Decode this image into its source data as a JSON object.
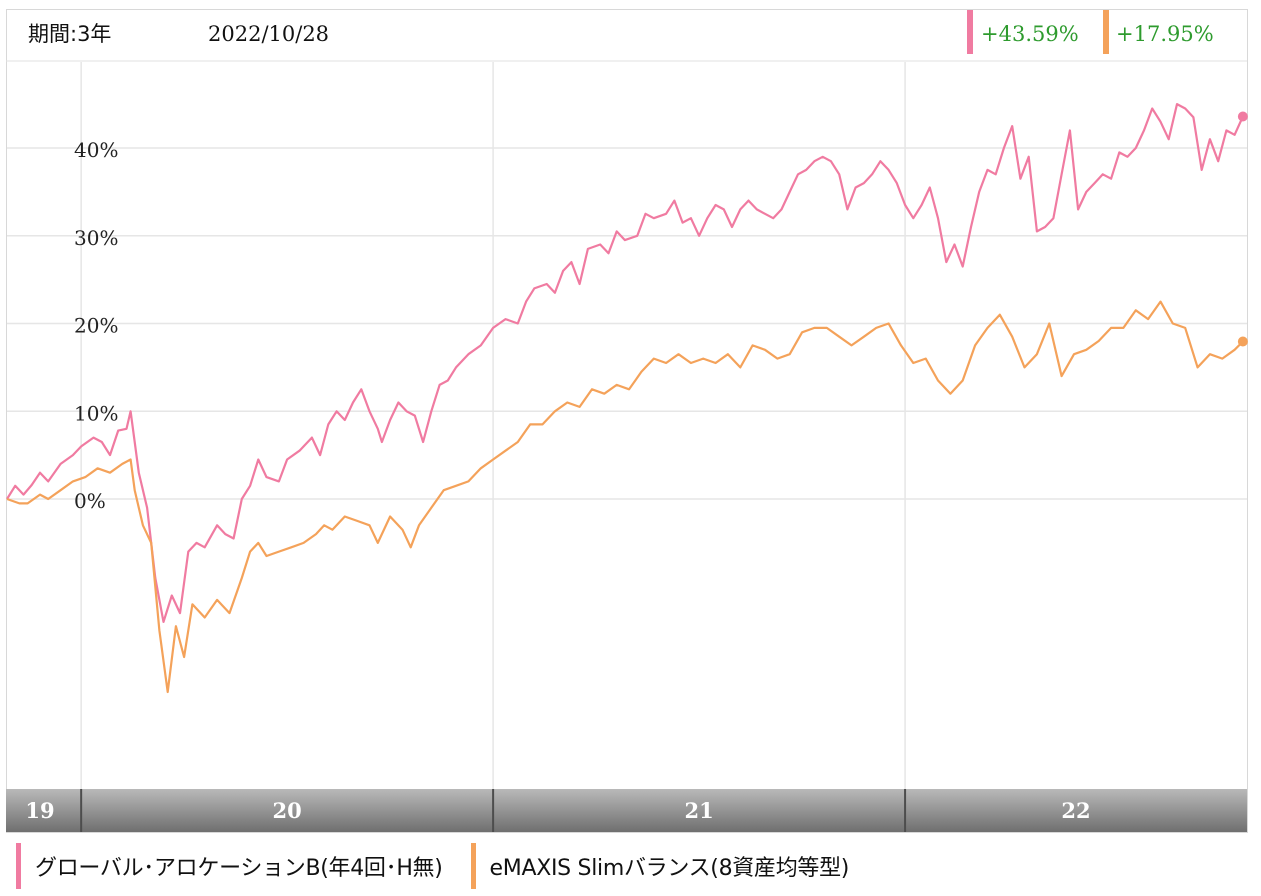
{
  "header": {
    "period_label": "期間:3年",
    "date": "2022/10/28",
    "badges": [
      {
        "value": "+43.59%",
        "color": "#f07ba1",
        "text_color": "#2e9b2e"
      },
      {
        "value": "+17.95%",
        "color": "#f4a25a",
        "text_color": "#2e9b2e"
      }
    ]
  },
  "legend": [
    {
      "label": "グローバル･アロケーションB(年4回･H無)",
      "color": "#f07ba1"
    },
    {
      "label": "eMAXIS Slimバランス(8資産均等型)",
      "color": "#f4a25a"
    }
  ],
  "chart_data": {
    "type": "line",
    "title": "",
    "xlabel": "",
    "ylabel": "",
    "x_ticks": [
      "19",
      "20",
      "21",
      "22"
    ],
    "y_ticks": [
      "40%",
      "30%",
      "20%",
      "10%",
      "0%"
    ],
    "y_tick_values": [
      40,
      30,
      20,
      10,
      0
    ],
    "ylim": [
      -34,
      50
    ],
    "xlim": [
      2019.82,
      2022.83
    ],
    "grid": true,
    "series": [
      {
        "name": "グローバル･アロケーションB(年4回･H無)",
        "color": "#f07ba1",
        "end_value": 43.59,
        "points": [
          [
            2019.82,
            0.0
          ],
          [
            2019.84,
            1.5
          ],
          [
            2019.86,
            0.5
          ],
          [
            2019.88,
            1.6
          ],
          [
            2019.9,
            3.0
          ],
          [
            2019.92,
            2.0
          ],
          [
            2019.95,
            4.0
          ],
          [
            2019.98,
            5.0
          ],
          [
            2020.0,
            6.0
          ],
          [
            2020.03,
            7.0
          ],
          [
            2020.05,
            6.5
          ],
          [
            2020.07,
            5.0
          ],
          [
            2020.09,
            7.8
          ],
          [
            2020.11,
            8.0
          ],
          [
            2020.12,
            10.0
          ],
          [
            2020.14,
            3.0
          ],
          [
            2020.16,
            -1.0
          ],
          [
            2020.18,
            -9.0
          ],
          [
            2020.2,
            -14.0
          ],
          [
            2020.22,
            -11.0
          ],
          [
            2020.24,
            -13.0
          ],
          [
            2020.26,
            -6.0
          ],
          [
            2020.28,
            -5.0
          ],
          [
            2020.3,
            -5.5
          ],
          [
            2020.33,
            -3.0
          ],
          [
            2020.35,
            -4.0
          ],
          [
            2020.37,
            -4.5
          ],
          [
            2020.39,
            0.0
          ],
          [
            2020.41,
            1.5
          ],
          [
            2020.43,
            4.5
          ],
          [
            2020.45,
            2.5
          ],
          [
            2020.48,
            2.0
          ],
          [
            2020.5,
            4.5
          ],
          [
            2020.53,
            5.5
          ],
          [
            2020.56,
            7.0
          ],
          [
            2020.58,
            5.0
          ],
          [
            2020.6,
            8.5
          ],
          [
            2020.62,
            10.0
          ],
          [
            2020.64,
            9.0
          ],
          [
            2020.66,
            11.0
          ],
          [
            2020.68,
            12.5
          ],
          [
            2020.7,
            10.0
          ],
          [
            2020.72,
            8.0
          ],
          [
            2020.73,
            6.5
          ],
          [
            2020.75,
            9.0
          ],
          [
            2020.77,
            11.0
          ],
          [
            2020.79,
            10.0
          ],
          [
            2020.81,
            9.5
          ],
          [
            2020.83,
            6.5
          ],
          [
            2020.85,
            10.0
          ],
          [
            2020.87,
            13.0
          ],
          [
            2020.89,
            13.5
          ],
          [
            2020.91,
            15.0
          ],
          [
            2020.94,
            16.5
          ],
          [
            2020.97,
            17.5
          ],
          [
            2021.0,
            19.5
          ],
          [
            2021.03,
            20.5
          ],
          [
            2021.06,
            20.0
          ],
          [
            2021.08,
            22.5
          ],
          [
            2021.1,
            24.0
          ],
          [
            2021.13,
            24.5
          ],
          [
            2021.15,
            23.5
          ],
          [
            2021.17,
            26.0
          ],
          [
            2021.19,
            27.0
          ],
          [
            2021.21,
            24.5
          ],
          [
            2021.23,
            28.5
          ],
          [
            2021.26,
            29.0
          ],
          [
            2021.28,
            28.0
          ],
          [
            2021.3,
            30.5
          ],
          [
            2021.32,
            29.5
          ],
          [
            2021.35,
            30.0
          ],
          [
            2021.37,
            32.5
          ],
          [
            2021.39,
            32.0
          ],
          [
            2021.42,
            32.5
          ],
          [
            2021.44,
            34.0
          ],
          [
            2021.46,
            31.5
          ],
          [
            2021.48,
            32.0
          ],
          [
            2021.5,
            30.0
          ],
          [
            2021.52,
            32.0
          ],
          [
            2021.54,
            33.5
          ],
          [
            2021.56,
            33.0
          ],
          [
            2021.58,
            31.0
          ],
          [
            2021.6,
            33.0
          ],
          [
            2021.62,
            34.0
          ],
          [
            2021.64,
            33.0
          ],
          [
            2021.66,
            32.5
          ],
          [
            2021.68,
            32.0
          ],
          [
            2021.7,
            33.0
          ],
          [
            2021.72,
            35.0
          ],
          [
            2021.74,
            37.0
          ],
          [
            2021.76,
            37.5
          ],
          [
            2021.78,
            38.5
          ],
          [
            2021.8,
            39.0
          ],
          [
            2021.82,
            38.5
          ],
          [
            2021.84,
            37.0
          ],
          [
            2021.86,
            33.0
          ],
          [
            2021.88,
            35.5
          ],
          [
            2021.9,
            36.0
          ],
          [
            2021.92,
            37.0
          ],
          [
            2021.94,
            38.5
          ],
          [
            2021.96,
            37.5
          ],
          [
            2021.98,
            36.0
          ],
          [
            2022.0,
            33.5
          ],
          [
            2022.02,
            32.0
          ],
          [
            2022.04,
            33.5
          ],
          [
            2022.06,
            35.5
          ],
          [
            2022.08,
            32.0
          ],
          [
            2022.1,
            27.0
          ],
          [
            2022.12,
            29.0
          ],
          [
            2022.14,
            26.5
          ],
          [
            2022.16,
            31.0
          ],
          [
            2022.18,
            35.0
          ],
          [
            2022.2,
            37.5
          ],
          [
            2022.22,
            37.0
          ],
          [
            2022.24,
            40.0
          ],
          [
            2022.26,
            42.5
          ],
          [
            2022.28,
            36.5
          ],
          [
            2022.3,
            39.0
          ],
          [
            2022.32,
            30.5
          ],
          [
            2022.34,
            31.0
          ],
          [
            2022.36,
            32.0
          ],
          [
            2022.38,
            37.0
          ],
          [
            2022.4,
            42.0
          ],
          [
            2022.42,
            33.0
          ],
          [
            2022.44,
            35.0
          ],
          [
            2022.46,
            36.0
          ],
          [
            2022.48,
            37.0
          ],
          [
            2022.5,
            36.5
          ],
          [
            2022.52,
            39.5
          ],
          [
            2022.54,
            39.0
          ],
          [
            2022.56,
            40.0
          ],
          [
            2022.58,
            42.0
          ],
          [
            2022.6,
            44.5
          ],
          [
            2022.62,
            43.0
          ],
          [
            2022.64,
            41.0
          ],
          [
            2022.66,
            45.0
          ],
          [
            2022.68,
            44.5
          ],
          [
            2022.7,
            43.5
          ],
          [
            2022.72,
            37.5
          ],
          [
            2022.74,
            41.0
          ],
          [
            2022.76,
            38.5
          ],
          [
            2022.78,
            42.0
          ],
          [
            2022.8,
            41.5
          ],
          [
            2022.82,
            43.59
          ]
        ]
      },
      {
        "name": "eMAXIS Slimバランス(8資産均等型)",
        "color": "#f4a25a",
        "end_value": 17.95,
        "points": [
          [
            2019.82,
            0.0
          ],
          [
            2019.85,
            -0.5
          ],
          [
            2019.87,
            -0.5
          ],
          [
            2019.9,
            0.5
          ],
          [
            2019.92,
            0.0
          ],
          [
            2019.95,
            1.0
          ],
          [
            2019.98,
            2.0
          ],
          [
            2020.01,
            2.5
          ],
          [
            2020.04,
            3.5
          ],
          [
            2020.07,
            3.0
          ],
          [
            2020.1,
            4.0
          ],
          [
            2020.12,
            4.5
          ],
          [
            2020.13,
            1.0
          ],
          [
            2020.15,
            -3.0
          ],
          [
            2020.17,
            -5.0
          ],
          [
            2020.19,
            -15.0
          ],
          [
            2020.21,
            -22.0
          ],
          [
            2020.23,
            -14.5
          ],
          [
            2020.25,
            -18.0
          ],
          [
            2020.27,
            -12.0
          ],
          [
            2020.3,
            -13.5
          ],
          [
            2020.33,
            -11.5
          ],
          [
            2020.36,
            -13.0
          ],
          [
            2020.39,
            -9.0
          ],
          [
            2020.41,
            -6.0
          ],
          [
            2020.43,
            -5.0
          ],
          [
            2020.45,
            -6.5
          ],
          [
            2020.48,
            -6.0
          ],
          [
            2020.51,
            -5.5
          ],
          [
            2020.54,
            -5.0
          ],
          [
            2020.57,
            -4.0
          ],
          [
            2020.59,
            -3.0
          ],
          [
            2020.61,
            -3.5
          ],
          [
            2020.64,
            -2.0
          ],
          [
            2020.67,
            -2.5
          ],
          [
            2020.7,
            -3.0
          ],
          [
            2020.72,
            -5.0
          ],
          [
            2020.75,
            -2.0
          ],
          [
            2020.78,
            -3.5
          ],
          [
            2020.8,
            -5.5
          ],
          [
            2020.82,
            -3.0
          ],
          [
            2020.85,
            -1.0
          ],
          [
            2020.88,
            1.0
          ],
          [
            2020.91,
            1.5
          ],
          [
            2020.94,
            2.0
          ],
          [
            2020.97,
            3.5
          ],
          [
            2021.0,
            4.5
          ],
          [
            2021.03,
            5.5
          ],
          [
            2021.06,
            6.5
          ],
          [
            2021.09,
            8.5
          ],
          [
            2021.12,
            8.5
          ],
          [
            2021.15,
            10.0
          ],
          [
            2021.18,
            11.0
          ],
          [
            2021.21,
            10.5
          ],
          [
            2021.24,
            12.5
          ],
          [
            2021.27,
            12.0
          ],
          [
            2021.3,
            13.0
          ],
          [
            2021.33,
            12.5
          ],
          [
            2021.36,
            14.5
          ],
          [
            2021.39,
            16.0
          ],
          [
            2021.42,
            15.5
          ],
          [
            2021.45,
            16.5
          ],
          [
            2021.48,
            15.5
          ],
          [
            2021.51,
            16.0
          ],
          [
            2021.54,
            15.5
          ],
          [
            2021.57,
            16.5
          ],
          [
            2021.6,
            15.0
          ],
          [
            2021.63,
            17.5
          ],
          [
            2021.66,
            17.0
          ],
          [
            2021.69,
            16.0
          ],
          [
            2021.72,
            16.5
          ],
          [
            2021.75,
            19.0
          ],
          [
            2021.78,
            19.5
          ],
          [
            2021.81,
            19.5
          ],
          [
            2021.84,
            18.5
          ],
          [
            2021.87,
            17.5
          ],
          [
            2021.9,
            18.5
          ],
          [
            2021.93,
            19.5
          ],
          [
            2021.96,
            20.0
          ],
          [
            2021.99,
            17.5
          ],
          [
            2022.02,
            15.5
          ],
          [
            2022.05,
            16.0
          ],
          [
            2022.08,
            13.5
          ],
          [
            2022.11,
            12.0
          ],
          [
            2022.14,
            13.5
          ],
          [
            2022.17,
            17.5
          ],
          [
            2022.2,
            19.5
          ],
          [
            2022.23,
            21.0
          ],
          [
            2022.26,
            18.5
          ],
          [
            2022.29,
            15.0
          ],
          [
            2022.32,
            16.5
          ],
          [
            2022.35,
            20.0
          ],
          [
            2022.38,
            14.0
          ],
          [
            2022.41,
            16.5
          ],
          [
            2022.44,
            17.0
          ],
          [
            2022.47,
            18.0
          ],
          [
            2022.5,
            19.5
          ],
          [
            2022.53,
            19.5
          ],
          [
            2022.56,
            21.5
          ],
          [
            2022.59,
            20.5
          ],
          [
            2022.62,
            22.5
          ],
          [
            2022.65,
            20.0
          ],
          [
            2022.68,
            19.5
          ],
          [
            2022.71,
            15.0
          ],
          [
            2022.74,
            16.5
          ],
          [
            2022.77,
            16.0
          ],
          [
            2022.8,
            17.0
          ],
          [
            2022.82,
            17.95
          ]
        ]
      }
    ]
  }
}
